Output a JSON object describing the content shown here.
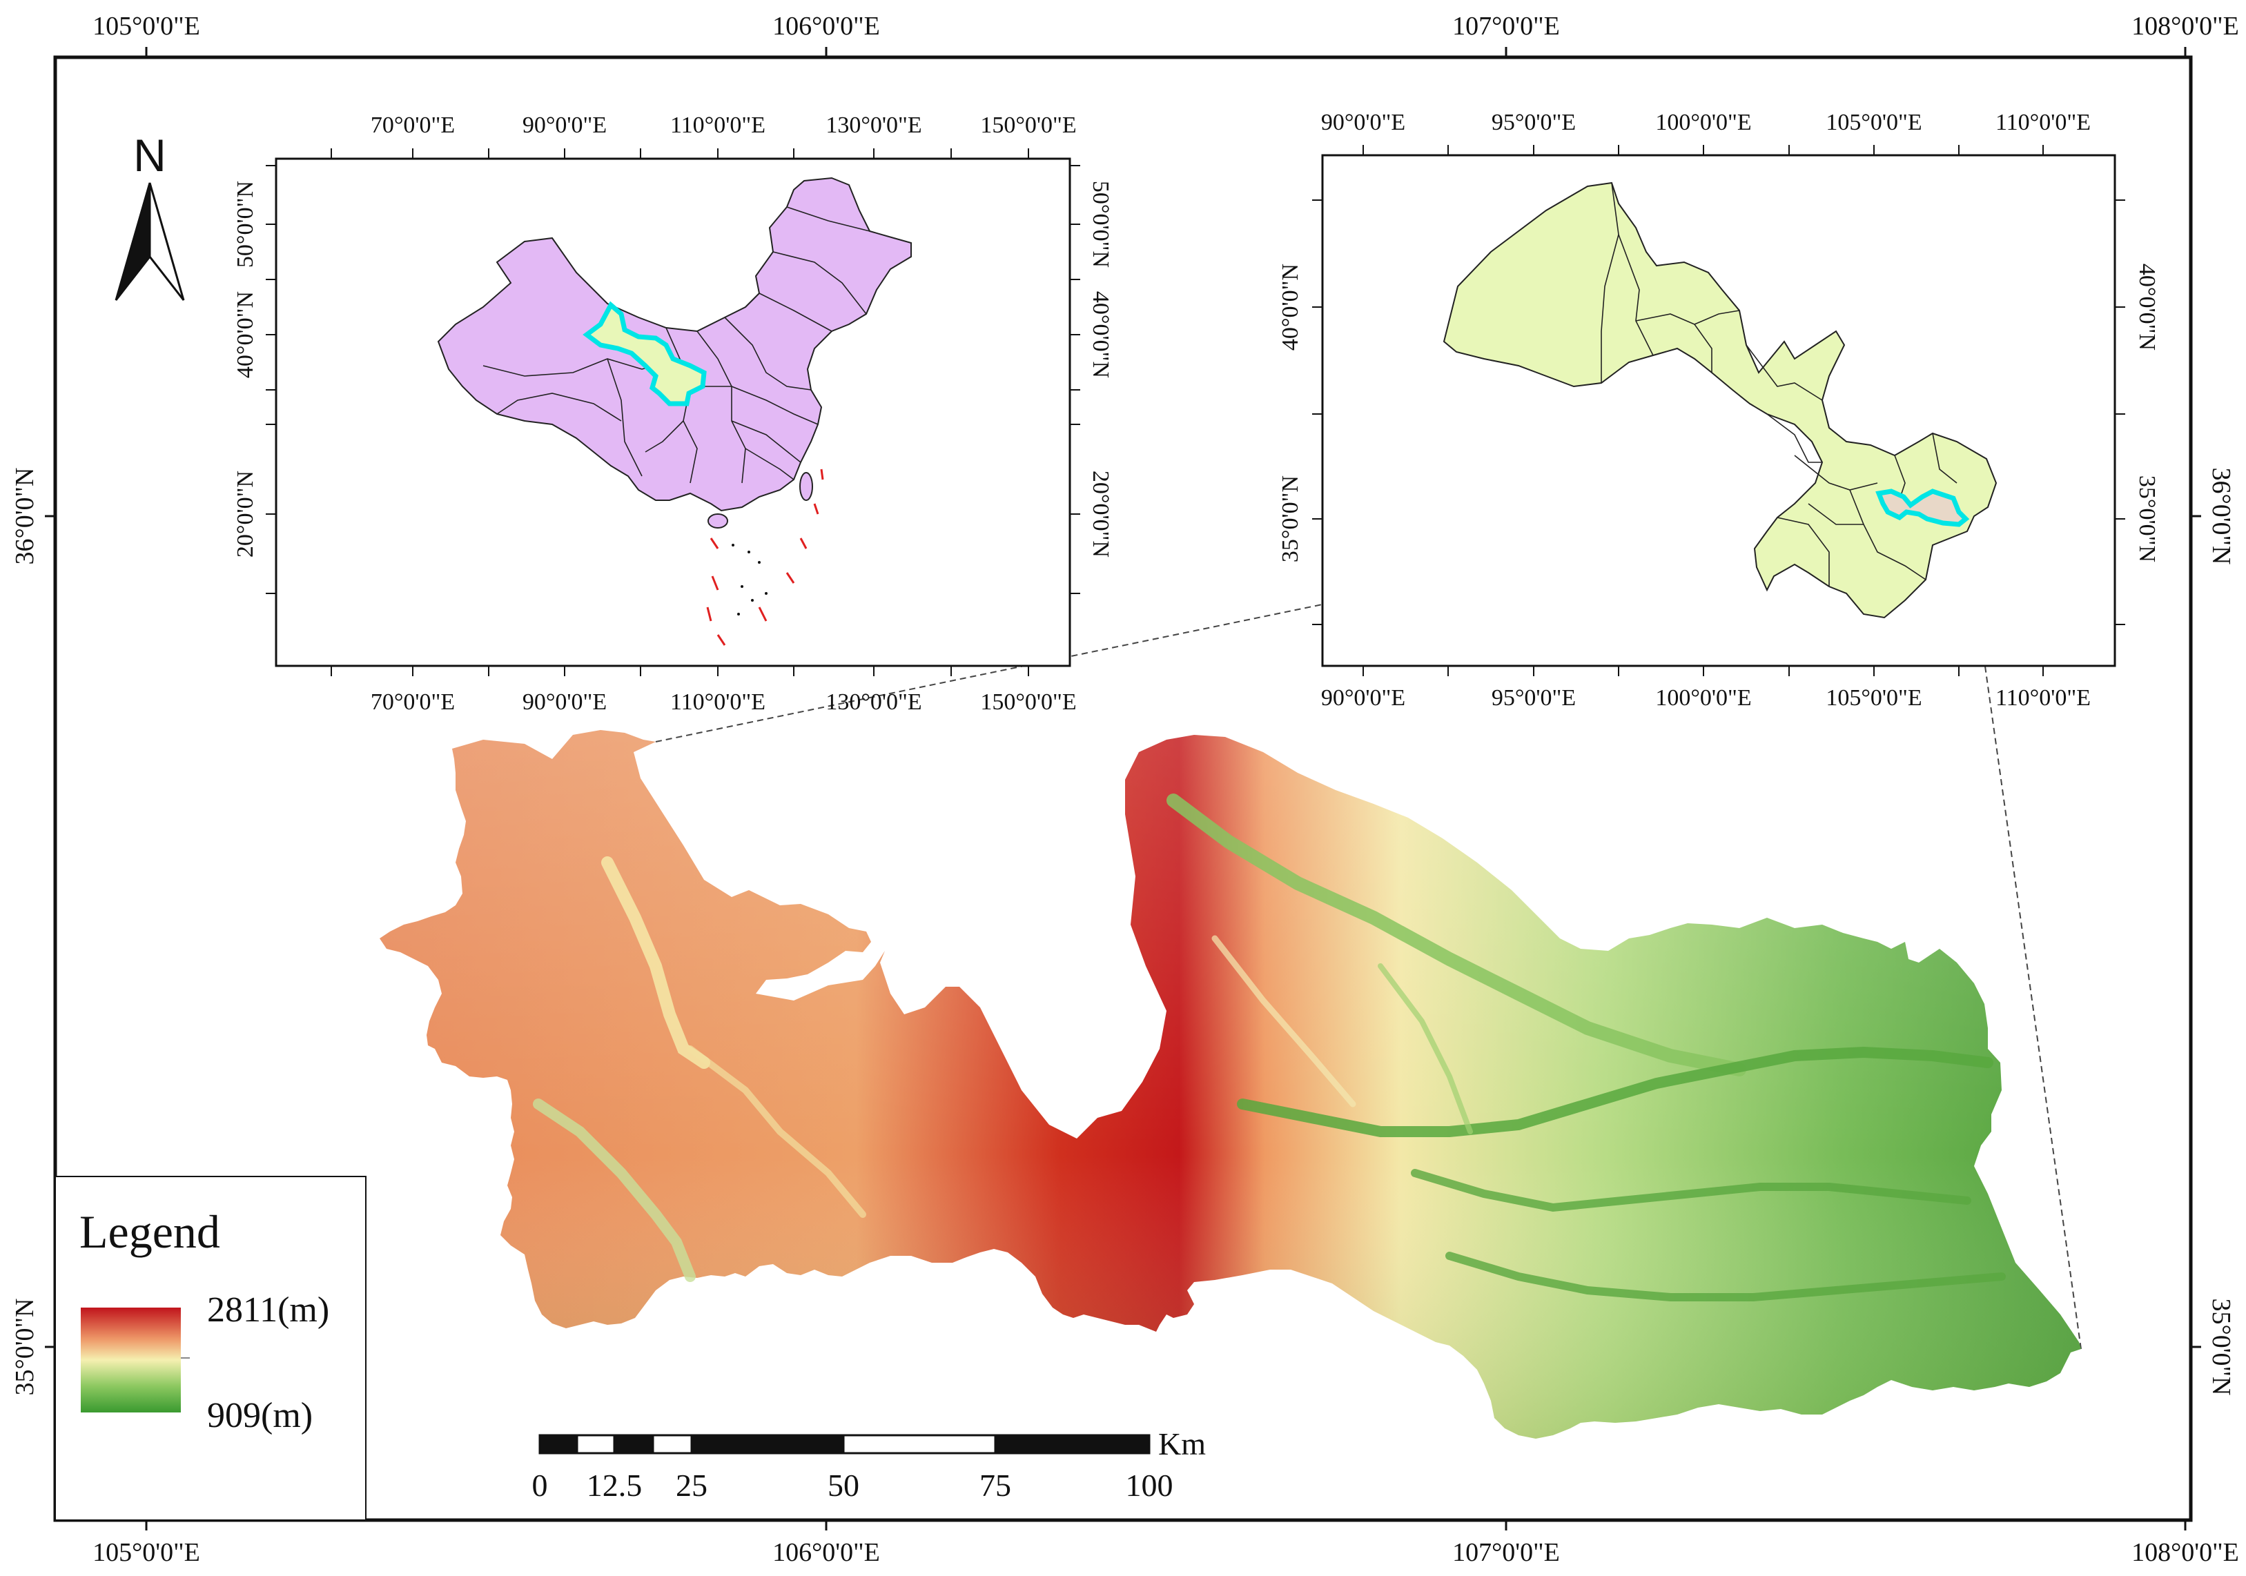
{
  "map": {
    "outer_frame": {
      "top_lon": [
        "105°0'0\"E",
        "106°0'0\"E",
        "107°0'0\"E",
        "108°0'0\"E"
      ],
      "bottom_lon": [
        "105°0'0\"E",
        "106°0'0\"E",
        "107°0'0\"E",
        "108°0'0\"E"
      ],
      "left_lat": [
        "36°0'0\"N",
        "35°0'0\"N"
      ],
      "right_lat": [
        "36°0'0\"N",
        "35°0'0\"N"
      ]
    },
    "north_arrow": {
      "letter": "N"
    },
    "inset_china": {
      "top_lon": [
        "70°0'0\"E",
        "90°0'0\"E",
        "110°0'0\"E",
        "130°0'0\"E",
        "150°0'0\"E"
      ],
      "bottom_lon": [
        "70°0'0\"E",
        "90°0'0\"E",
        "110°0'0\"E",
        "130°0'0\"E",
        "150°0'0\"E"
      ],
      "left_lat": [
        "50°0'0\"N",
        "40°0'0\"N",
        "20°0'0\"N"
      ],
      "right_lat": [
        "50°0'0\"N",
        "40°0'0\"N",
        "20°0'0\"N"
      ],
      "fill_color": "#e3b9f5",
      "highlight_color": "#00e5e5"
    },
    "inset_gansu": {
      "top_lon": [
        "90°0'0\"E",
        "95°0'0\"E",
        "100°0'0\"E",
        "105°0'0\"E",
        "110°0'0\"E"
      ],
      "bottom_lon": [
        "90°0'0\"E",
        "95°0'0\"E",
        "100°0'0\"E",
        "105°0'0\"E",
        "110°0'0\"E"
      ],
      "left_lat": [
        "40°0'0\"N",
        "35°0'0\"N"
      ],
      "right_lat": [
        "40°0'0\"N",
        "35°0'0\"N"
      ],
      "fill_color": "#e8f7b8",
      "highlight_color": "#00e5e5"
    },
    "legend": {
      "title": "Legend",
      "max_label": "2811(m)",
      "min_label": "909(m)",
      "ramp_colors": [
        "#c0141c",
        "#f0a070",
        "#f5f0b0",
        "#8cc860",
        "#3a9a30"
      ]
    },
    "scale_bar": {
      "unit": "Km",
      "labels": [
        "0",
        "12.5",
        "25",
        "50",
        "75",
        "100"
      ]
    },
    "elevation_colors": [
      "#c21a1e",
      "#e8804e",
      "#f3c890",
      "#f3efb0",
      "#9ccc6a",
      "#4ea23a"
    ]
  }
}
